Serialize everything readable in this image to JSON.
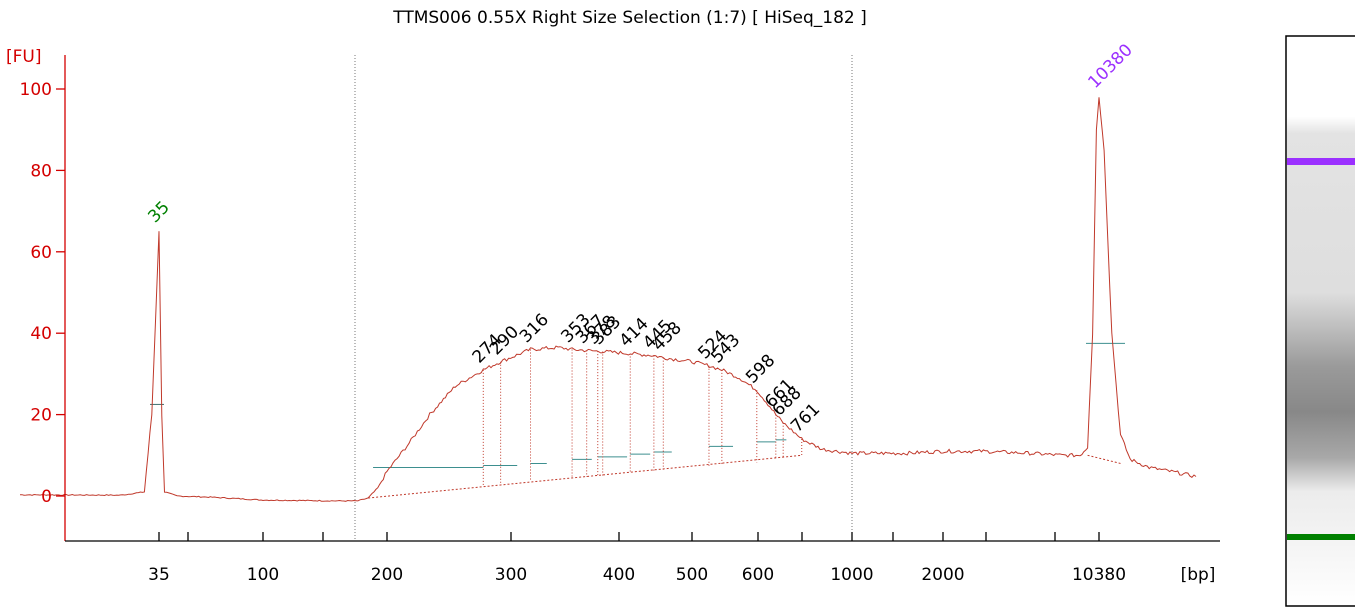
{
  "chart_data": {
    "type": "line",
    "title": "TTMS006 0.55X Right Size Selection (1:7)  [ HiSeq_182 ]",
    "ylabel": "[FU]",
    "xlabel": "[bp]",
    "ylim": [
      -10,
      110
    ],
    "x_scale": "ladder (size in bp)",
    "y_ticks": [
      "0",
      "20",
      "40",
      "60",
      "80",
      "100"
    ],
    "x_ticks": [
      "35",
      "100",
      "200",
      "300",
      "400",
      "500",
      "600",
      "1000",
      "2000",
      "10380"
    ],
    "marker_peaks": [
      {
        "label": "35",
        "size_bp": 35,
        "fu": 65,
        "color": "#008000"
      },
      {
        "label": "10380",
        "size_bp": 10380,
        "fu": 98,
        "color": "#9b30ff"
      }
    ],
    "peak_labels": [
      "274",
      "290",
      "316",
      "353",
      "367",
      "378",
      "383",
      "414",
      "445",
      "458",
      "524",
      "543",
      "598",
      "661",
      "688",
      "761"
    ],
    "series": [
      {
        "color": "#c0392b",
        "points": [
          [
            20,
            0.3
          ],
          [
            30,
            0.2
          ],
          [
            33,
            1
          ],
          [
            34,
            20
          ],
          [
            35,
            65
          ],
          [
            36,
            20
          ],
          [
            37,
            1
          ],
          [
            42,
            0
          ],
          [
            60,
            -0.3
          ],
          [
            100,
            -1
          ],
          [
            150,
            -1.2
          ],
          [
            170,
            -1.2
          ],
          [
            180,
            -0.5
          ],
          [
            190,
            2
          ],
          [
            200,
            6
          ],
          [
            215,
            13
          ],
          [
            230,
            20
          ],
          [
            250,
            27
          ],
          [
            274,
            31
          ],
          [
            290,
            33
          ],
          [
            316,
            36
          ],
          [
            340,
            36.5
          ],
          [
            353,
            36
          ],
          [
            383,
            35.5
          ],
          [
            414,
            35
          ],
          [
            445,
            34.5
          ],
          [
            458,
            34
          ],
          [
            500,
            33
          ],
          [
            524,
            32
          ],
          [
            543,
            31
          ],
          [
            570,
            29
          ],
          [
            598,
            26
          ],
          [
            640,
            22
          ],
          [
            661,
            20
          ],
          [
            688,
            18
          ],
          [
            761,
            14
          ],
          [
            850,
            11.5
          ],
          [
            1000,
            10.5
          ],
          [
            1500,
            10.5
          ],
          [
            2000,
            11
          ],
          [
            3000,
            11
          ],
          [
            5000,
            10.5
          ],
          [
            7000,
            10
          ],
          [
            8500,
            10
          ],
          [
            9200,
            12
          ],
          [
            9700,
            40
          ],
          [
            10100,
            90
          ],
          [
            10380,
            98
          ],
          [
            10700,
            85
          ],
          [
            11200,
            40
          ],
          [
            11800,
            15
          ],
          [
            12500,
            9
          ],
          [
            14000,
            7
          ],
          [
            16000,
            6
          ],
          [
            18500,
            4.8
          ]
        ]
      }
    ]
  },
  "gel": {
    "upper_marker_color": "#9b30ff",
    "lower_marker_color": "#008000"
  }
}
